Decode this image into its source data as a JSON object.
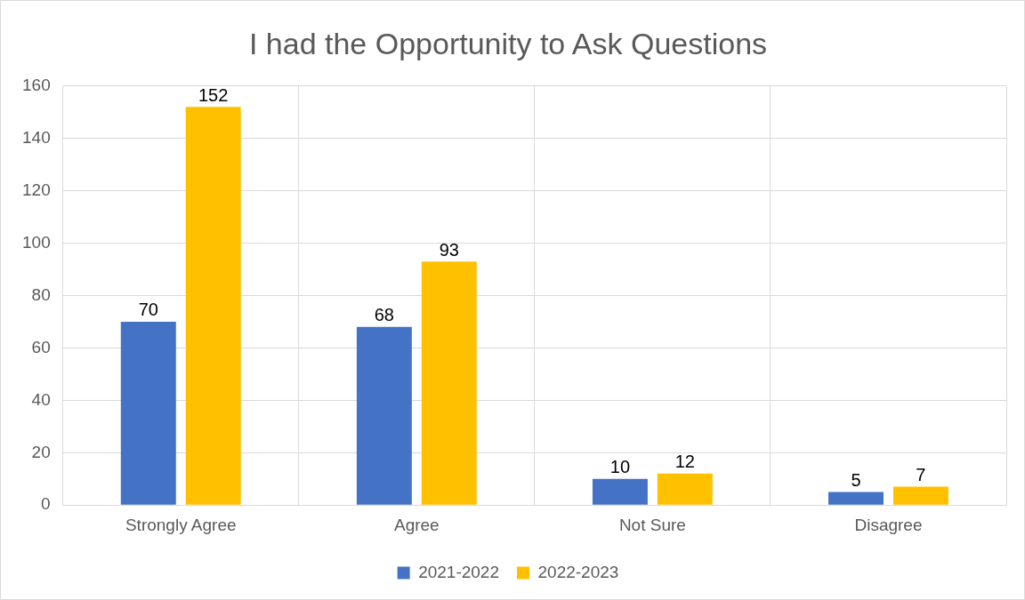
{
  "chart_data": {
    "type": "bar",
    "title": "I had the Opportunity to Ask Questions",
    "categories": [
      "Strongly Agree",
      "Agree",
      "Not Sure",
      "Disagree"
    ],
    "series": [
      {
        "name": "2021-2022",
        "color": "#4472c4",
        "values": [
          70,
          68,
          10,
          5
        ]
      },
      {
        "name": "2022-2023",
        "color": "#ffc000",
        "values": [
          152,
          93,
          12,
          7
        ]
      }
    ],
    "ylim": [
      0,
      160
    ],
    "yticks": [
      0,
      20,
      40,
      60,
      80,
      100,
      120,
      140,
      160
    ],
    "grid": true,
    "legend": "bottom",
    "data_labels": true
  }
}
